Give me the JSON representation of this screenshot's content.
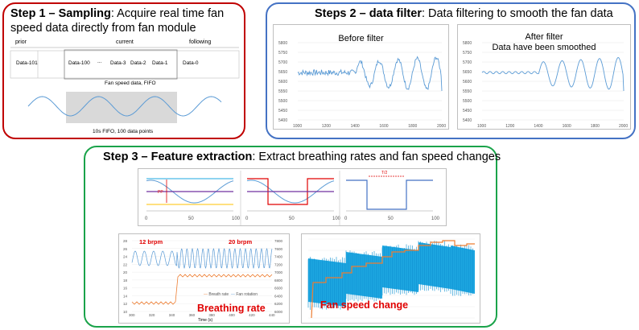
{
  "step1": {
    "title_bold": "Step 1 – Sampling",
    "title_rest": ": Acquire real time fan",
    "title_line2": "speed data directly from fan module",
    "headers": [
      "prior",
      "current",
      "following"
    ],
    "cells": [
      "Data-101",
      "Data-100",
      "...",
      "Data-3",
      "Data-2",
      "Data-1",
      "Data-0"
    ],
    "caption": "Fan speed data, FIFO",
    "footnote": "10s FIFO, 100 data points"
  },
  "step2": {
    "title_bold": "Steps 2 – data filter",
    "title_rest": ": Data filtering to smooth the fan data",
    "before_title": "Before filter",
    "after_title_1": "After filter",
    "after_title_2": "Data have been smoothed",
    "y_ticks": [
      "5800",
      "5750",
      "5700",
      "5650",
      "5600",
      "5550",
      "5500",
      "5450",
      "5400"
    ],
    "x_ticks": [
      "1000",
      "1200",
      "1400",
      "1600",
      "1800",
      "2000"
    ]
  },
  "step3": {
    "title_bold": "Step 3 – Feature extraction",
    "title_rest": ": Extract breathing rates and fan speed changes",
    "mini_x_ticks": [
      "0",
      "50",
      "100"
    ],
    "pp_label": "PP",
    "t_half_label": "T/2",
    "rate_low": "12 brpm",
    "rate_high": "20 brpm",
    "breathing_label": "Breathing rate",
    "fan_change_label": "Fan speed change",
    "legend_breath": "Breath rate",
    "legend_fan": "Fan rotation",
    "br_y_ticks": [
      "28",
      "26",
      "24",
      "22",
      "20",
      "18",
      "16",
      "14",
      "12",
      "10"
    ],
    "br_y2_ticks": [
      "7800",
      "7600",
      "7400",
      "7200",
      "7000",
      "6800",
      "6600",
      "6400",
      "6200",
      "6000"
    ],
    "br_x_ticks": [
      "300",
      "320",
      "340",
      "360",
      "380",
      "400",
      "420",
      "440"
    ],
    "br_xlabel": "Time (s)",
    "br_ylabel": "Breath rate (brpm)",
    "br_y2label": "Fan rotation (rpm)"
  },
  "colors": {
    "red": "#c00000",
    "blue": "#4472c4",
    "green": "#1aa34a",
    "signal": "#5b9bd5",
    "orange": "#ed7d31",
    "cyan": "#1ea7e1"
  }
}
